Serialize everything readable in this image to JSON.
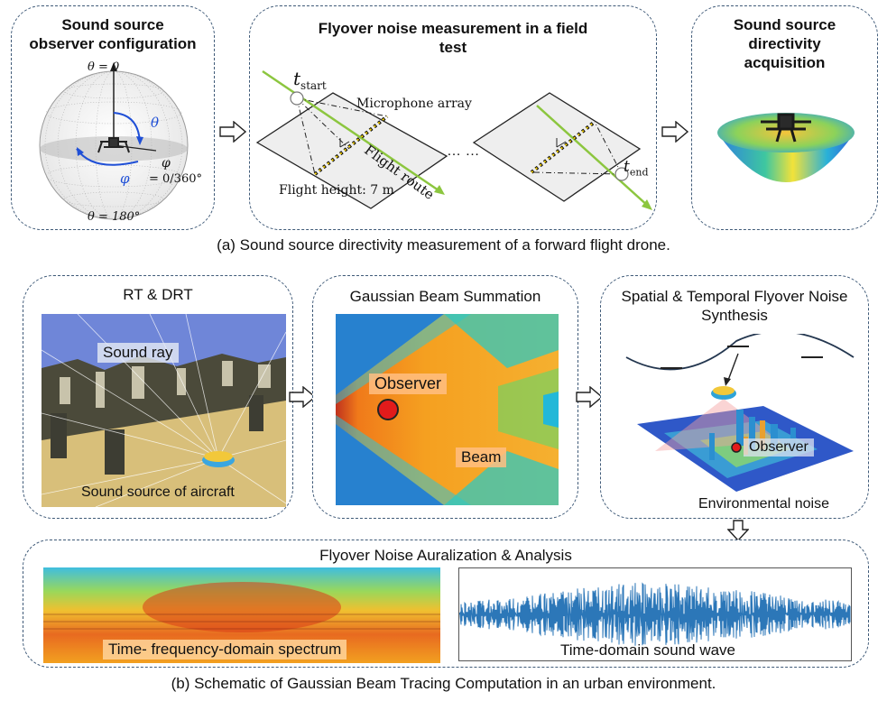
{
  "panels_a": {
    "observer_config": {
      "title": "Sound source observer configuration",
      "theta_top": "θ = 0",
      "theta_bottom": "θ = 180°",
      "theta_symbol": "θ",
      "phi_symbol": "φ",
      "phi_label": "φ",
      "phi_range": "= 0/360°"
    },
    "flyover": {
      "title": "Flyover noise measurement in a field test",
      "t_start": "t",
      "t_start_sub": "start",
      "t_end": "t",
      "t_end_sub": "end",
      "microphone": "Microphone array",
      "flight_route": "Flight route",
      "flight_height": "Flight height: 7 m",
      "ellipsis": "… …"
    },
    "directivity": {
      "title": "Sound source directivity acquisition"
    },
    "caption": "(a) Sound source directivity measurement of a forward flight drone."
  },
  "panels_b": {
    "rt": {
      "title": "RT & DRT",
      "sound_ray": "Sound ray",
      "sound_source": "Sound source of aircraft"
    },
    "gbs": {
      "title": "Gaussian Beam Summation",
      "observer": "Observer",
      "beam": "Beam"
    },
    "synthesis": {
      "title": "Spatial & Temporal Flyover Noise Synthesis",
      "observer": "Observer",
      "environmental": "Environmental noise"
    },
    "auralization": {
      "title": "Flyover Noise Auralization & Analysis",
      "spectrum": "Time- frequency-domain spectrum",
      "wave": "Time-domain sound wave"
    },
    "caption": "(b) Schematic of Gaussian Beam Tracing Computation in an urban environment."
  },
  "colors": {
    "panel_border": "#3f5a78",
    "route_green": "#8cc63f",
    "observer_red": "#e21b1b",
    "wave_blue": "#2c77b8"
  }
}
